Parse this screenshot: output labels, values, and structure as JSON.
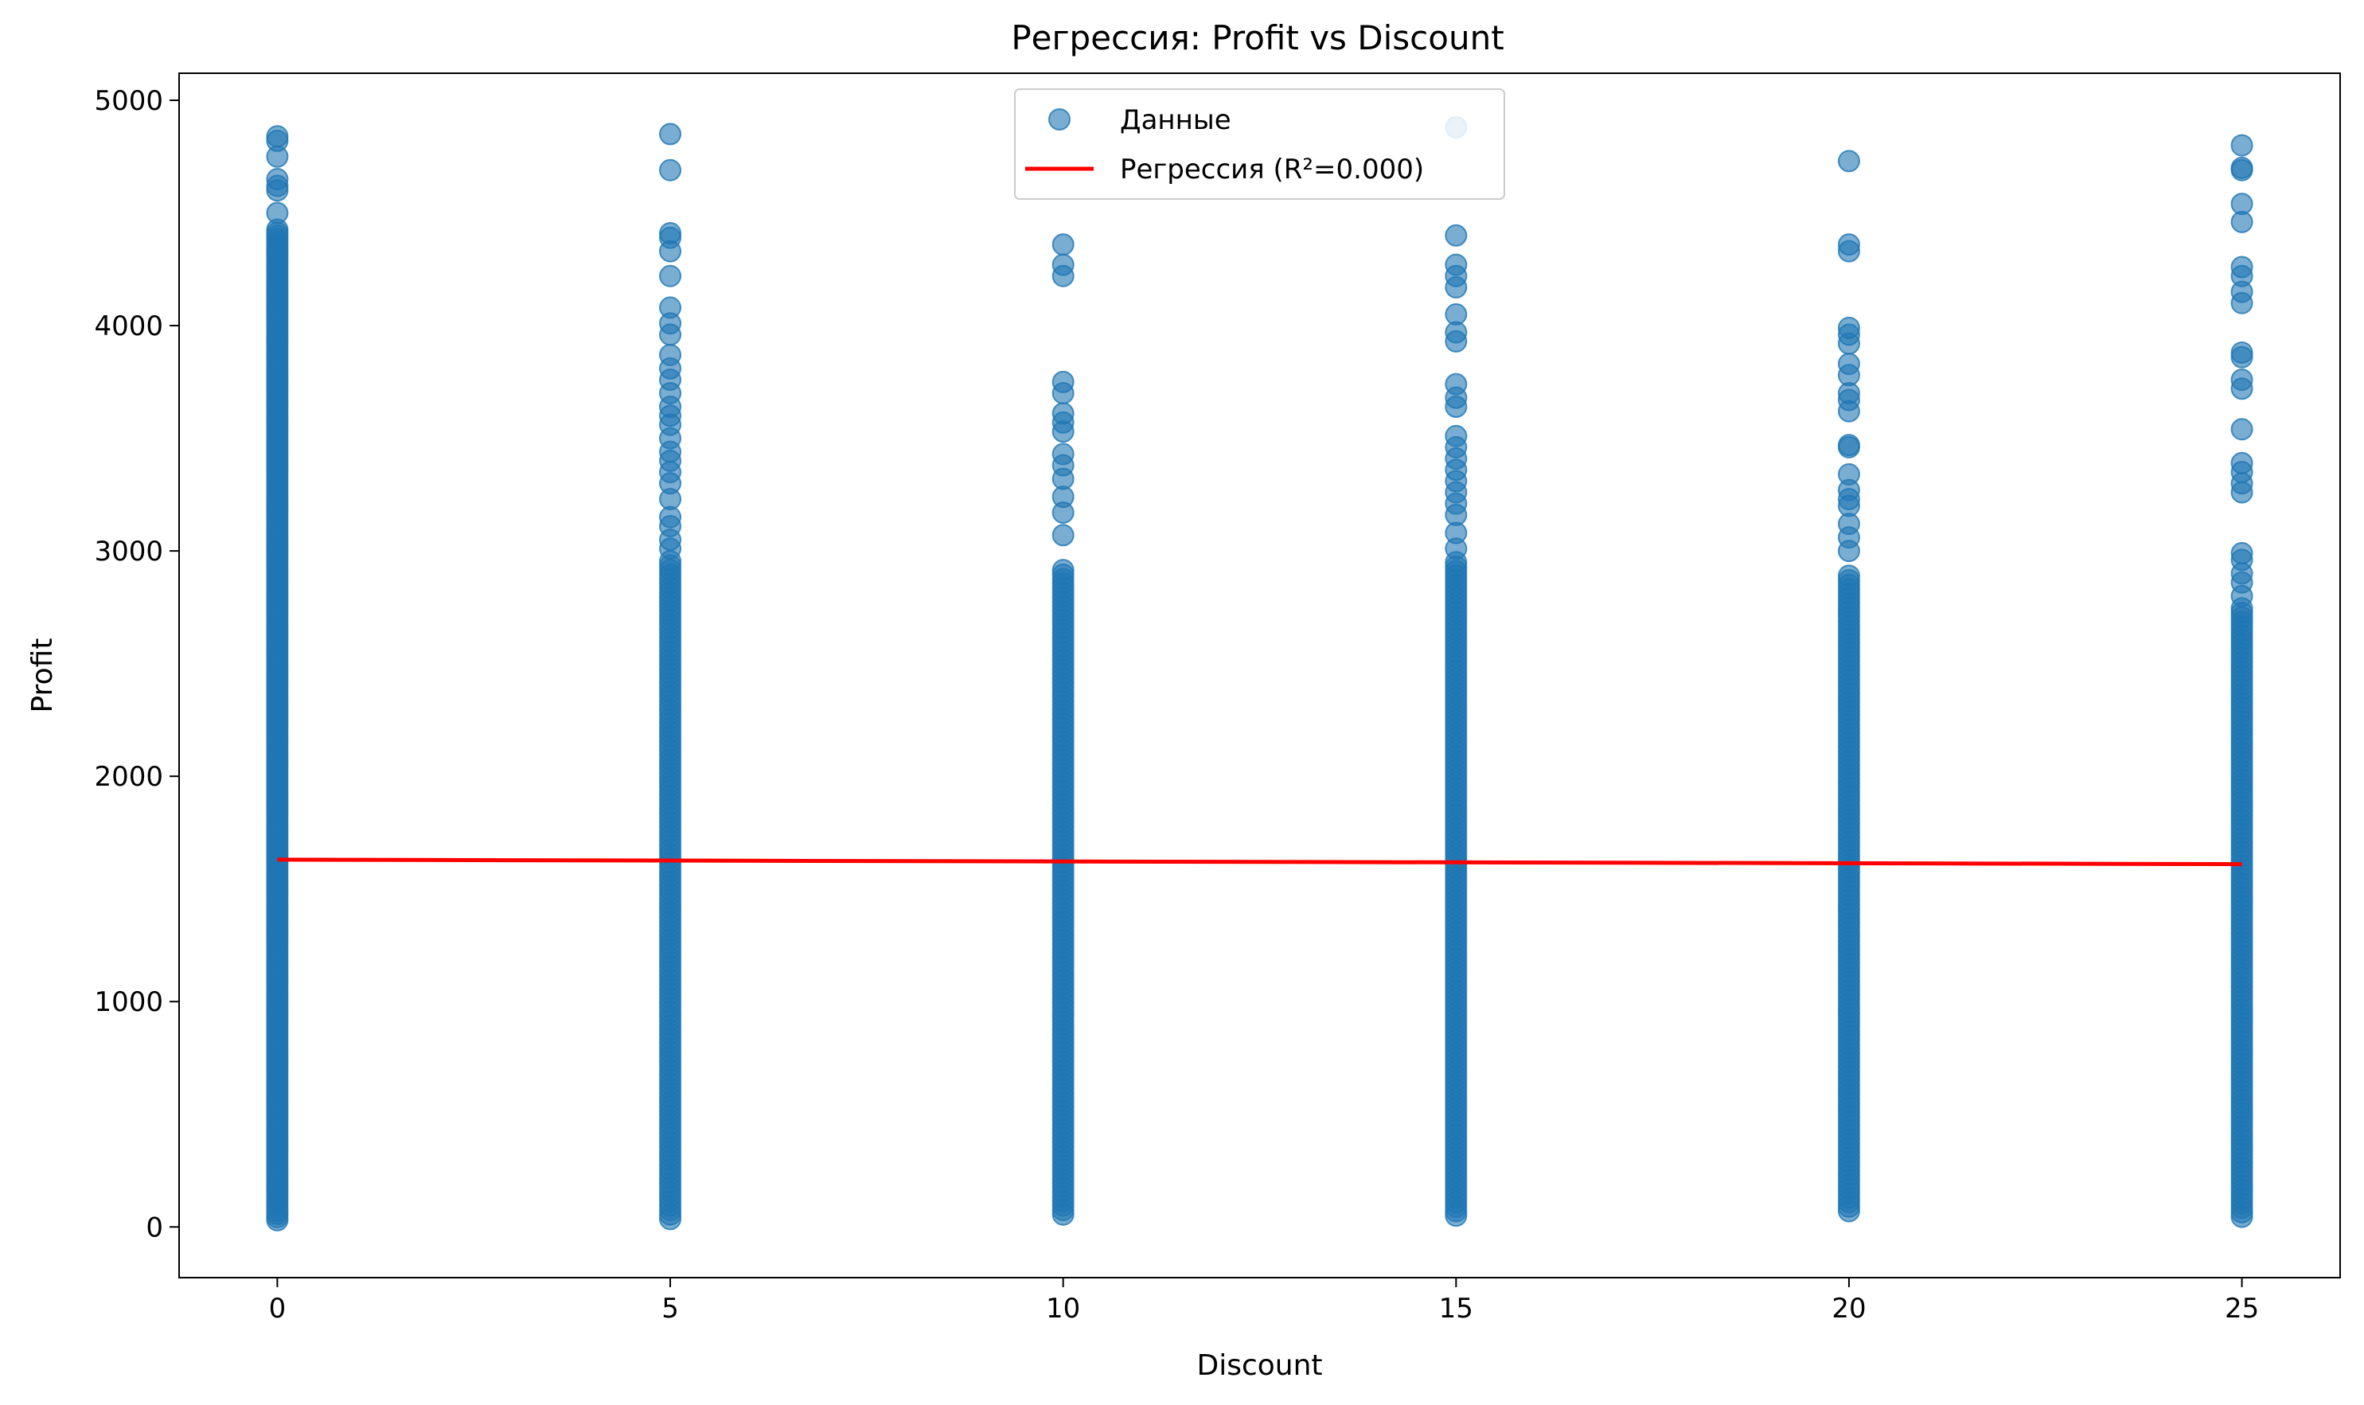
{
  "chart_data": {
    "type": "scatter",
    "title": "Регрессия: Profit vs Discount",
    "xlabel": "Discount",
    "ylabel": "Profit",
    "xlim": [
      -1.25,
      26.25
    ],
    "ylim": [
      -225,
      5120
    ],
    "x_ticks": [
      0,
      5,
      10,
      15,
      20,
      25
    ],
    "y_ticks": [
      0,
      1000,
      2000,
      3000,
      4000,
      5000
    ],
    "legend_position": "top-center",
    "grid": false,
    "series": [
      {
        "name": "Данные",
        "kind": "scatter",
        "color": "#1f77b4",
        "alpha": 0.6,
        "x_groups": [
          0,
          5,
          10,
          15,
          20,
          25
        ],
        "group_min": [
          30,
          35,
          55,
          50,
          70,
          45
        ],
        "group_max": [
          4840,
          4850,
          4360,
          4880,
          4730,
          4800
        ],
        "dense_to": [
          4430,
          2960,
          2920,
          2960,
          2900,
          2760
        ],
        "sparse_points": [
          [
            4840,
            4820,
            4750,
            4650,
            4620,
            4600,
            4500
          ],
          [
            4850,
            4690,
            4410,
            4390,
            4330,
            4220,
            4080,
            4010,
            3960,
            3870,
            3810,
            3760,
            3700,
            3640,
            3600,
            3560,
            3500,
            3440,
            3400,
            3350,
            3300,
            3230,
            3150,
            3110,
            3050,
            3010
          ],
          [
            4360,
            4270,
            4220,
            3750,
            3700,
            3610,
            3570,
            3530,
            3430,
            3380,
            3320,
            3240,
            3170,
            3070
          ],
          [
            4880,
            4400,
            4270,
            4220,
            4170,
            4050,
            3970,
            3930,
            3740,
            3680,
            3640,
            3510,
            3460,
            3410,
            3360,
            3310,
            3260,
            3210,
            3160,
            3080,
            3010
          ],
          [
            4730,
            4360,
            4330,
            3990,
            3960,
            3920,
            3830,
            3780,
            3700,
            3670,
            3620,
            3470,
            3460,
            3340,
            3270,
            3230,
            3200,
            3120,
            3060,
            3000
          ],
          [
            4800,
            4700,
            4690,
            4540,
            4460,
            4260,
            4220,
            4150,
            4100,
            3880,
            3860,
            3760,
            3720,
            3540,
            3390,
            3350,
            3300,
            3260,
            2990,
            2960,
            2900,
            2860,
            2800
          ]
        ]
      },
      {
        "name": "Регрессия (R²=0.000)",
        "kind": "line",
        "color": "#ff0000",
        "x": [
          0,
          25
        ],
        "y": [
          1630,
          1610
        ]
      }
    ]
  }
}
